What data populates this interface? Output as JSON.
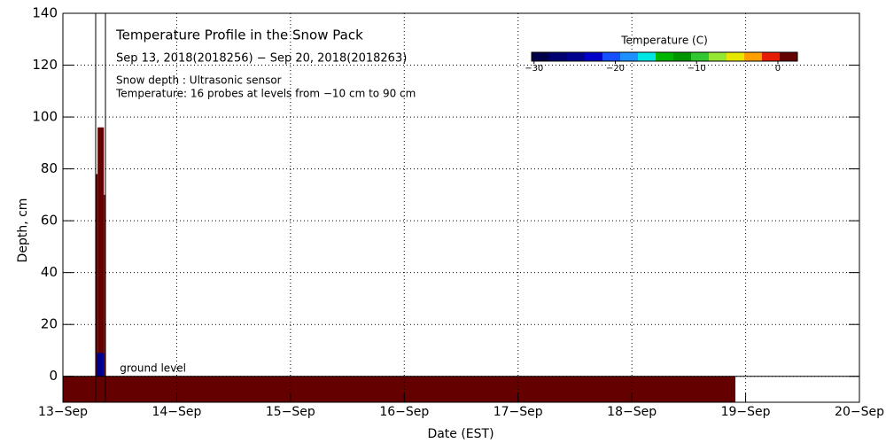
{
  "chart_data": {
    "type": "heatmap",
    "title": "Temperature Profile in the Snow Pack",
    "subtitle": "Sep 13, 2018(2018256) − Sep 20, 2018(2018263)",
    "notes": [
      "Snow depth : Ultrasonic sensor",
      "Temperature: 16 probes at levels from −10 cm to 90 cm"
    ],
    "xlabel": "Date (EST)",
    "ylabel": "Depth, cm",
    "xlim": [
      0,
      7
    ],
    "xticks": [
      {
        "value": 0,
        "label": "13−Sep"
      },
      {
        "value": 1,
        "label": "14−Sep"
      },
      {
        "value": 2,
        "label": "15−Sep"
      },
      {
        "value": 3,
        "label": "16−Sep"
      },
      {
        "value": 4,
        "label": "17−Sep"
      },
      {
        "value": 5,
        "label": "18−Sep"
      },
      {
        "value": 6,
        "label": "19−Sep"
      },
      {
        "value": 7,
        "label": "20−Sep"
      }
    ],
    "ylim": [
      -10,
      140
    ],
    "yticks": [
      0,
      20,
      40,
      60,
      80,
      100,
      120,
      140
    ],
    "grid": true,
    "annotation": {
      "text": "ground level",
      "x": 0.5,
      "y": 3
    },
    "snow_depth_lines_x": [
      0.288,
      0.374
    ],
    "cells": [
      {
        "x": [
          0,
          5.91
        ],
        "y": [
          -10,
          0
        ],
        "value": 2
      },
      {
        "x": [
          0.288,
          0.305
        ],
        "y": [
          0,
          78
        ],
        "value": 2
      },
      {
        "x": [
          0.305,
          0.36
        ],
        "y": [
          0,
          96
        ],
        "value": 2
      },
      {
        "x": [
          0.36,
          0.374
        ],
        "y": [
          0,
          70
        ],
        "value": 2
      },
      {
        "x": [
          0.295,
          0.36
        ],
        "y": [
          0,
          9
        ],
        "value": -25
      }
    ],
    "colorbar": {
      "label": "Temperature (C)",
      "lim": [
        -30.3,
        2.4
      ],
      "ticks": [
        {
          "value": -30,
          "label": "−30"
        },
        {
          "value": -20,
          "label": "−20"
        },
        {
          "value": -10,
          "label": "−10"
        },
        0
      ],
      "colors": [
        "#00004a",
        "#000070",
        "#00008f",
        "#0000c8",
        "#1450ff",
        "#1e90ff",
        "#00e6e6",
        "#00b400",
        "#009600",
        "#32c832",
        "#96e632",
        "#e6e600",
        "#ffa000",
        "#e61e00",
        "#640000"
      ]
    }
  }
}
